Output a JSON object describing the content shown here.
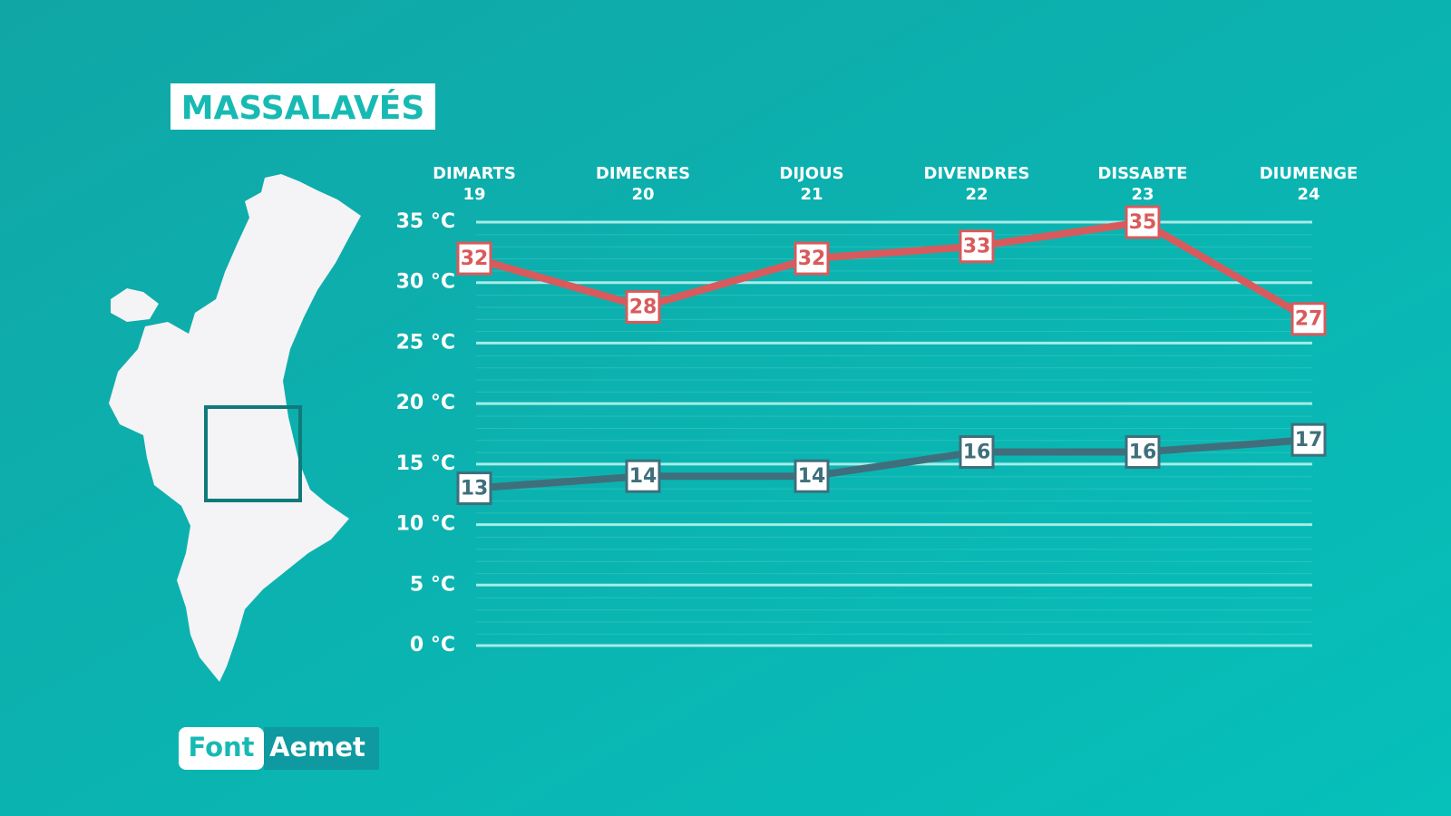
{
  "chart_data": {
    "type": "line",
    "title": "MASSALAVÉS",
    "categories": [
      "DIMARTS",
      "DIMECRES",
      "DIJOUS",
      "DIVENDRES",
      "DISSABTE",
      "DIUMENGE"
    ],
    "category_dates": [
      "19",
      "20",
      "21",
      "22",
      "23",
      "24"
    ],
    "series": [
      {
        "color": "#d95a5c",
        "values": [
          32,
          28,
          32,
          33,
          35,
          27
        ]
      },
      {
        "color": "#3f6f7c",
        "values": [
          13,
          14,
          14,
          16,
          16,
          17
        ]
      }
    ],
    "ylim": [
      0,
      35
    ],
    "yticks": [
      {
        "value": 0,
        "label": "0 °C"
      },
      {
        "value": 5,
        "label": "5 °C"
      },
      {
        "value": 10,
        "label": "10 °C"
      },
      {
        "value": 15,
        "label": "15 °C"
      },
      {
        "value": 20,
        "label": "20 °C"
      },
      {
        "value": 25,
        "label": "25 °C"
      },
      {
        "value": 30,
        "label": "30 °C"
      },
      {
        "value": 35,
        "label": "35 °C"
      }
    ],
    "grid": true,
    "source_label": "Font",
    "source": "Aemet"
  }
}
